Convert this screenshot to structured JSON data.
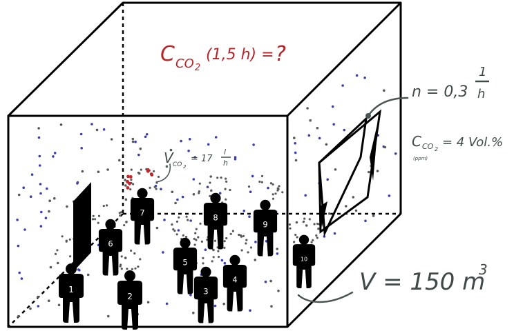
{
  "question": {
    "prefix": "C",
    "subscript": "CO",
    "subscript2": "2",
    "argument": "(1,5 h) =",
    "unknown": "?",
    "color": "#b5262b"
  },
  "air_exchange": {
    "prefix": "n = 0,3",
    "numerator": "1",
    "denominator": "h",
    "color": "#3f4a48"
  },
  "outdoor_concentration": {
    "prefix": "C",
    "subscript": "CO",
    "subscript2": "2",
    "value": "= 4 Vol.%",
    "note": "(ppm)",
    "color": "#3f4a48"
  },
  "emission_rate": {
    "prefix": "V",
    "subscript": "CO",
    "subscript2": "2",
    "value": "= 17",
    "numerator": "l",
    "denominator": "h",
    "color": "#3f4a48"
  },
  "volume": {
    "text": "V = 150 m",
    "exponent": "3",
    "color": "#3f4a48"
  },
  "people": [
    "1",
    "2",
    "3",
    "4",
    "5",
    "6",
    "7",
    "8",
    "9",
    "10"
  ],
  "colors": {
    "outline": "#000000",
    "person": "#000000",
    "dot_blue": "#3b3fa8",
    "dot_gray": "#555a58",
    "dot_red": "#c0282d"
  }
}
